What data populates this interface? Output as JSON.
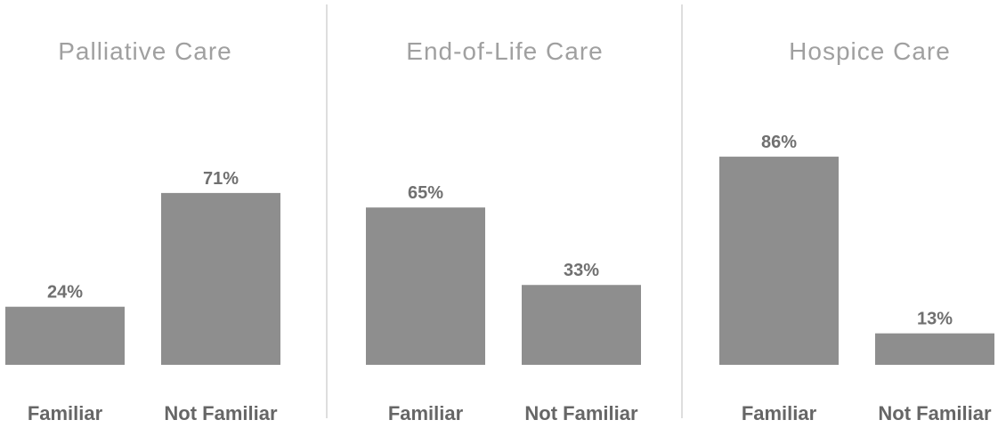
{
  "chart_data": [
    {
      "type": "bar",
      "title": "Palliative Care",
      "categories": [
        "Familiar",
        "Not Familiar"
      ],
      "values": [
        24,
        71
      ],
      "value_labels": [
        "24%",
        "71%"
      ],
      "ylim": [
        0,
        100
      ]
    },
    {
      "type": "bar",
      "title": "End-of-Life Care",
      "categories": [
        "Familiar",
        "Not Familiar"
      ],
      "values": [
        65,
        33
      ],
      "value_labels": [
        "65%",
        "33%"
      ],
      "ylim": [
        0,
        100
      ]
    },
    {
      "type": "bar",
      "title": "Hospice Care",
      "categories": [
        "Familiar",
        "Not Familiar"
      ],
      "values": [
        86,
        13
      ],
      "value_labels": [
        "86%",
        "13%"
      ],
      "ylim": [
        0,
        100
      ]
    }
  ],
  "colors": {
    "bar": "#8e8e8e",
    "title": "#a0a0a0",
    "label": "#666666"
  }
}
